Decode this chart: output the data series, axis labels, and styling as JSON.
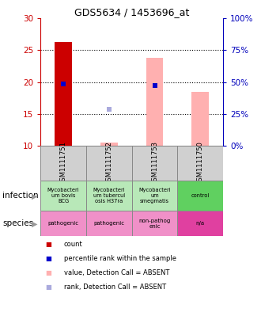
{
  "title": "GDS5634 / 1453696_at",
  "samples": [
    "GSM1111751",
    "GSM1111752",
    "GSM1111753",
    "GSM1111750"
  ],
  "ylim_left": [
    10,
    30
  ],
  "ylim_right": [
    0,
    100
  ],
  "yticks_left": [
    10,
    15,
    20,
    25,
    30
  ],
  "yticks_right": [
    0,
    25,
    50,
    75,
    100
  ],
  "ytick_labels_right": [
    "0%",
    "25%",
    "50%",
    "75%",
    "100%"
  ],
  "red_bars": [
    26.3,
    null,
    null,
    null
  ],
  "pink_bars": [
    null,
    10.5,
    23.8,
    18.5
  ],
  "blue_squares": [
    19.7,
    null,
    19.5,
    null
  ],
  "lavender_squares": [
    null,
    15.7,
    null,
    null
  ],
  "infection_labels": [
    "Mycobacteri\num bovis\nBCG",
    "Mycobacteri\num tubercul\nosis H37ra",
    "Mycobacteri\num\nsmegmatis",
    "control"
  ],
  "infection_colors": [
    "#b8e8b8",
    "#b8e8b8",
    "#b8e8b8",
    "#60d060"
  ],
  "species_labels": [
    "pathogenic",
    "pathogenic",
    "non-pathog\nenic",
    "n/a"
  ],
  "species_colors": [
    "#f090c8",
    "#f090c8",
    "#f090c8",
    "#e040a0"
  ],
  "legend_colors": [
    "#cc0000",
    "#0000cc",
    "#ffb0b0",
    "#aaaadd"
  ],
  "legend_texts": [
    "count",
    "percentile rank within the sample",
    "value, Detection Call = ABSENT",
    "rank, Detection Call = ABSENT"
  ],
  "left_axis_color": "#cc0000",
  "right_axis_color": "#0000bb",
  "grid_yticks": [
    15,
    20,
    25
  ]
}
